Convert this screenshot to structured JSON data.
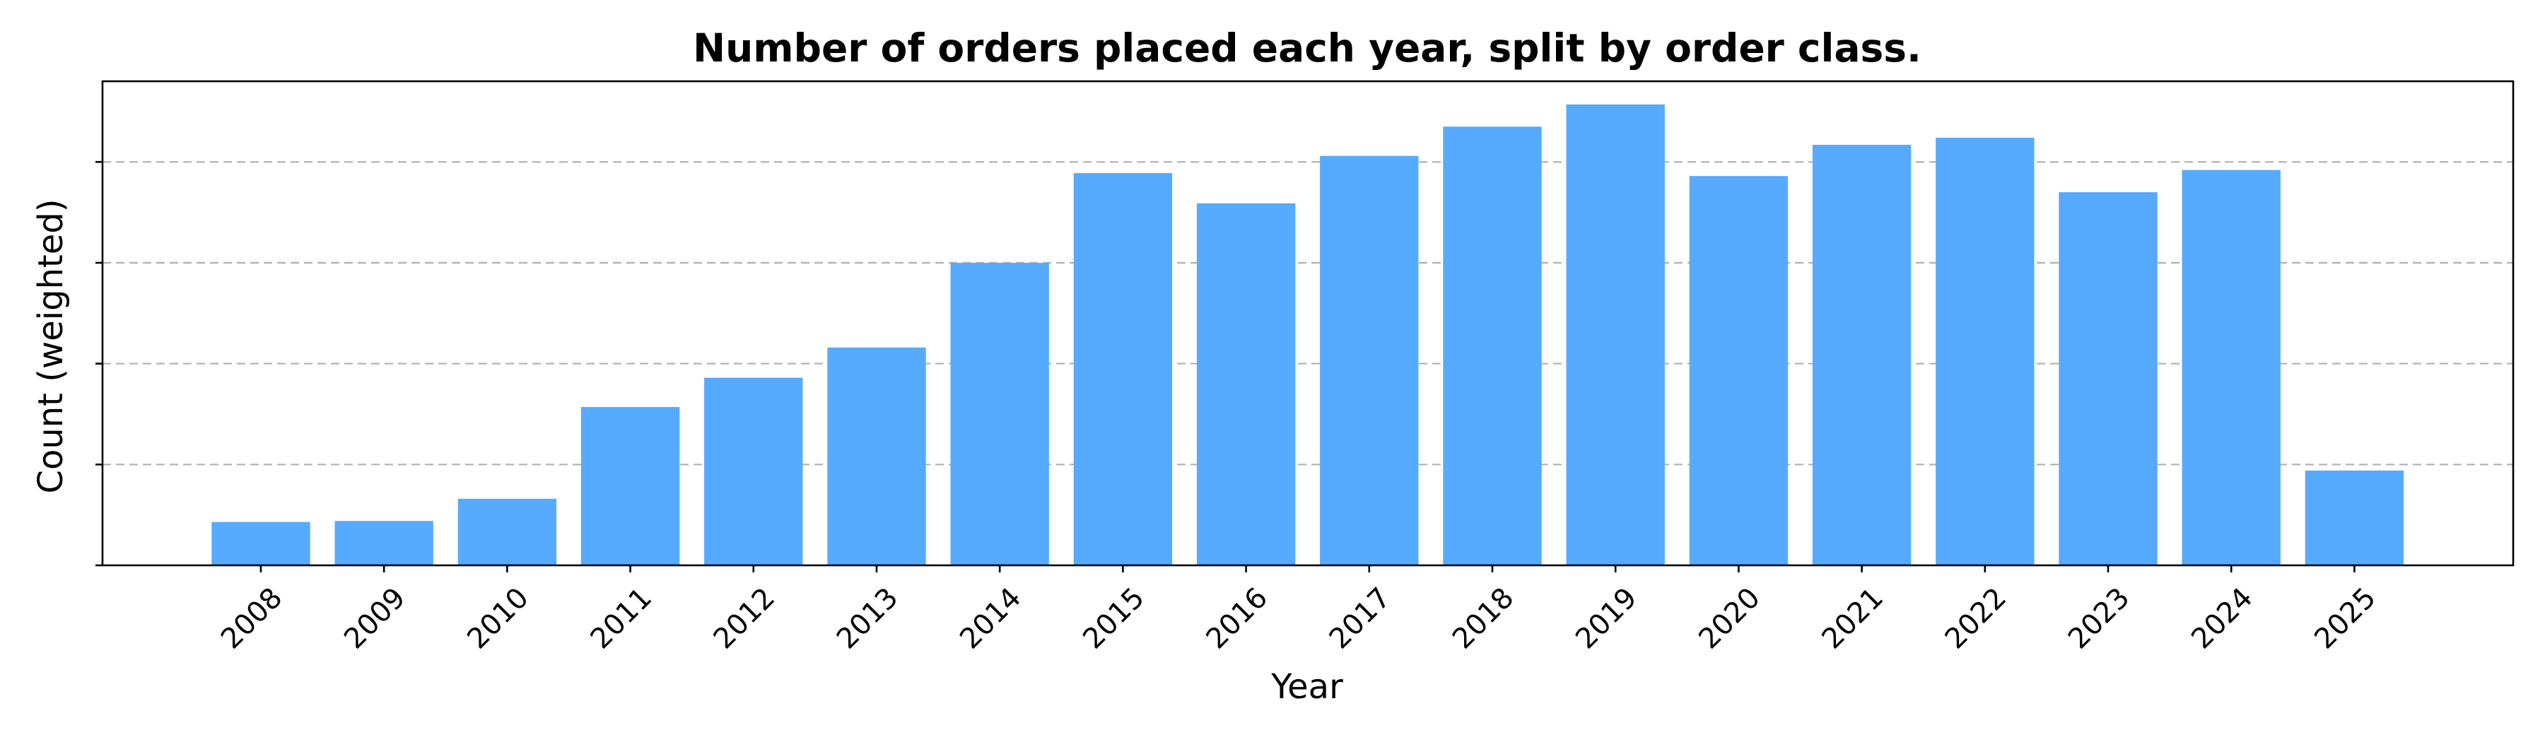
{
  "chart_data": {
    "type": "bar",
    "title": "Number of orders placed each year, split by order class.",
    "xlabel": "Year",
    "ylabel": "Count (weighted)",
    "categories": [
      "2008",
      "2009",
      "2010",
      "2011",
      "2012",
      "2013",
      "2014",
      "2015",
      "2016",
      "2017",
      "2018",
      "2019",
      "2020",
      "2021",
      "2022",
      "2023",
      "2024",
      "2025"
    ],
    "values": [
      0.43,
      0.44,
      0.66,
      1.57,
      1.86,
      2.16,
      3.0,
      3.89,
      3.59,
      4.06,
      4.35,
      4.57,
      3.86,
      4.17,
      4.24,
      3.7,
      3.92,
      0.94
    ],
    "ylim": [
      0,
      4.8
    ],
    "yticks": [
      0,
      1,
      2,
      3,
      4
    ],
    "y_tick_labels_shown": false,
    "grid": "horizontal-dashed",
    "bar_color": "#56aaff",
    "grid_color": "#b0b0b0",
    "axis_color": "#000000"
  }
}
